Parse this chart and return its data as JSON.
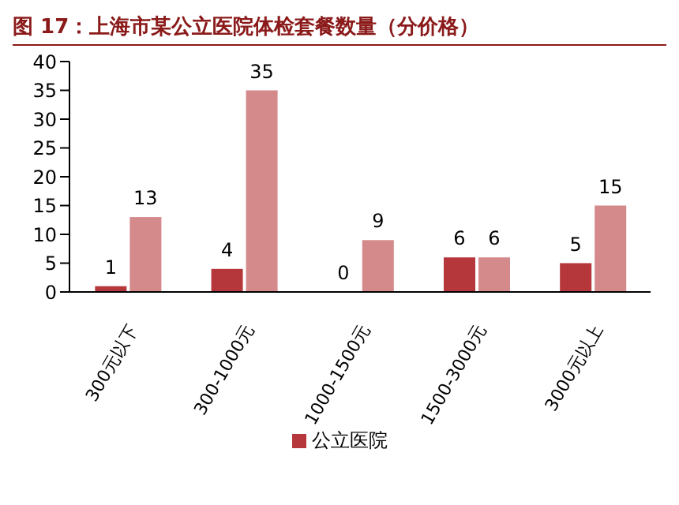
{
  "chart_data": {
    "type": "bar",
    "title": "图 17：上海市某公立医院体检套餐数量（分价格）",
    "categories": [
      "300元以下",
      "300-1000元",
      "1000-1500元",
      "1500-3000元",
      "3000元以上"
    ],
    "series": [
      {
        "name": "公立医院",
        "color": "#b5373b",
        "values": [
          1,
          4,
          0,
          6,
          5
        ]
      },
      {
        "color": "#d4898b",
        "values": [
          13,
          35,
          9,
          6,
          15
        ]
      }
    ],
    "ylim": [
      0,
      40
    ],
    "yticks": [
      0,
      5,
      10,
      15,
      20,
      25,
      30,
      35,
      40
    ],
    "grid": false,
    "legend": "bottom",
    "data_labels": true
  }
}
